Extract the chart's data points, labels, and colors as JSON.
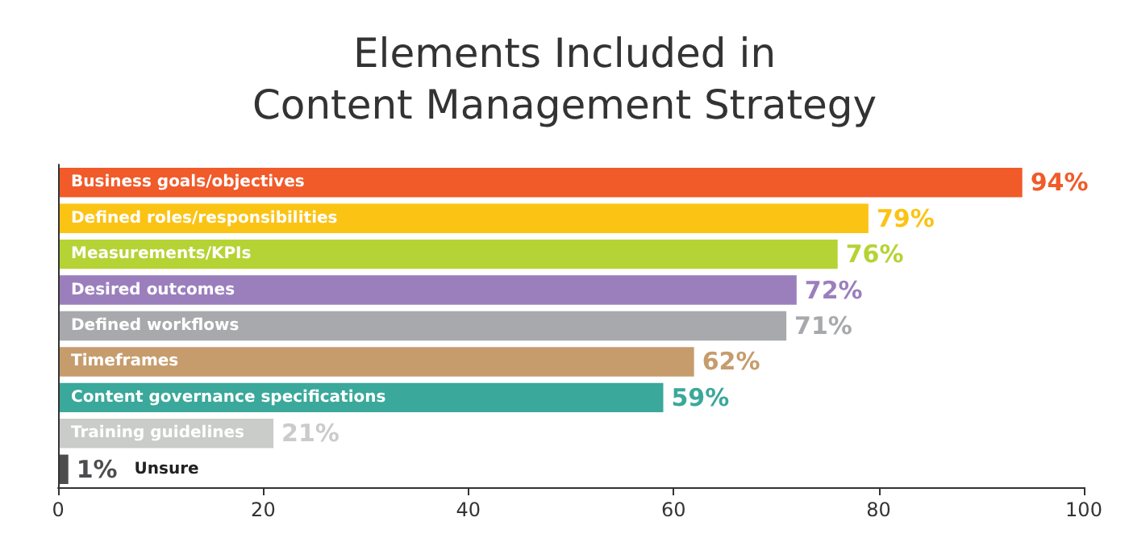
{
  "chart_data": {
    "type": "bar",
    "orientation": "horizontal",
    "title": "Elements Included in\nContent Management Strategy",
    "categories": [
      "Business goals/objectives",
      "Defined roles/responsibilities",
      "Measurements/KPIs",
      "Desired outcomes",
      "Defined workflows",
      "Timeframes",
      "Content governance specifications",
      "Training guidelines",
      "Unsure"
    ],
    "values": [
      94,
      79,
      76,
      72,
      71,
      62,
      59,
      21,
      1
    ],
    "colors": [
      "#f15a29",
      "#fbc314",
      "#b5d334",
      "#9b7fbd",
      "#a7a9ac",
      "#c69c6d",
      "#3aa89a",
      "#c9ccc9",
      "#4d4d4f"
    ],
    "value_labels": [
      "94%",
      "79%",
      "76%",
      "72%",
      "71%",
      "62%",
      "59%",
      "21%",
      "1%"
    ],
    "xlim": [
      0,
      100
    ],
    "xticks": [
      0,
      20,
      40,
      60,
      80,
      100
    ],
    "grid": false
  }
}
